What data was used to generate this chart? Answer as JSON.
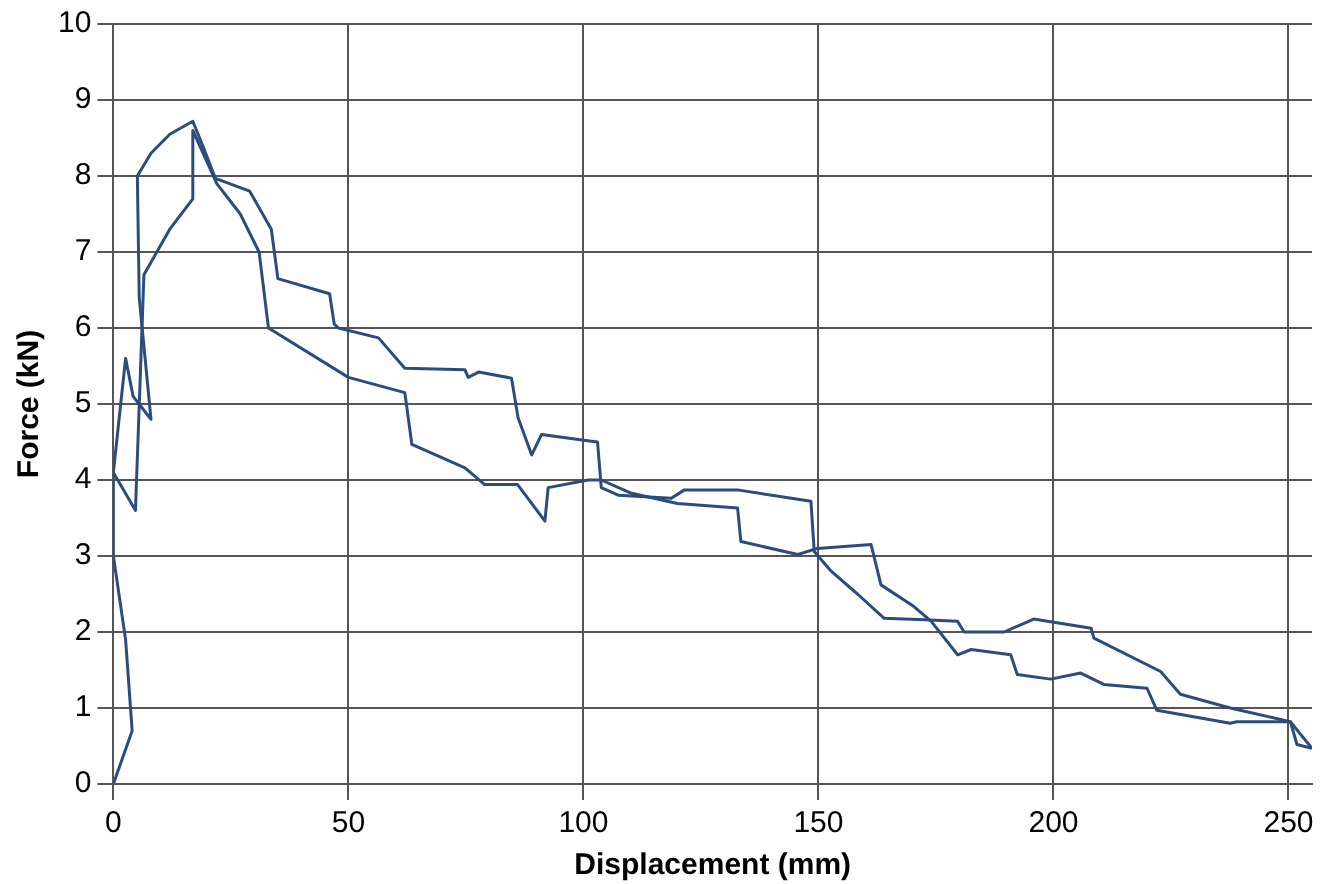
{
  "chart_data": {
    "type": "line",
    "xlabel": "Displacement (mm)",
    "ylabel": "Force (kN)",
    "xlim": [
      0,
      255
    ],
    "xticks": [
      0,
      50,
      100,
      150,
      200,
      250
    ],
    "ylim": [
      0,
      10
    ],
    "yticks": [
      0,
      1,
      2,
      3,
      4,
      5,
      6,
      7,
      8,
      9,
      10
    ],
    "grid": true,
    "legend": false,
    "marker": "none",
    "line_style": "solid",
    "series": [
      {
        "color": "#2a4d7c",
        "x": [
          0,
          4,
          2.6,
          0,
          0,
          2.6,
          4.2,
          8,
          5.5,
          5.1,
          8,
          12,
          16.9,
          19,
          21.7,
          29,
          33.6,
          35,
          46,
          47,
          47.9,
          56.4,
          62,
          74.8,
          75.5,
          77.7,
          84.7,
          86.1,
          89,
          91.1,
          101.7,
          103,
          103.8,
          107.4,
          118.7,
          121.5,
          132.8,
          148.4,
          149.1,
          152.7,
          158.3,
          164,
          172.5,
          179.6,
          181,
          189.5,
          195.8,
          208,
          208.6,
          222.8,
          227,
          237.6,
          250.4,
          255
        ],
        "values": [
          0,
          0.7,
          1.9,
          3,
          4.1,
          5.6,
          5.1,
          4.8,
          6.4,
          8,
          8.3,
          8.55,
          8.72,
          8.4,
          7.97,
          7.8,
          7.3,
          6.65,
          6.45,
          6.05,
          6,
          5.87,
          5.47,
          5.45,
          5.35,
          5.42,
          5.34,
          4.82,
          4.33,
          4.6,
          4.51,
          4.5,
          3.9,
          3.8,
          3.76,
          3.87,
          3.87,
          3.72,
          3.06,
          2.8,
          2.5,
          2.18,
          2.16,
          2.14,
          2,
          2,
          2.17,
          2.05,
          1.92,
          1.48,
          1.18,
          1,
          0.82,
          0.47
        ]
      },
      {
        "color": "#2a4d7c",
        "x": [
          0,
          4.7,
          6.5,
          12,
          16.9,
          16.9,
          22,
          27,
          31,
          33,
          50,
          62,
          63.5,
          74.8,
          79,
          86,
          91.8,
          92.5,
          101,
          103.8,
          110,
          120,
          132.8,
          133.5,
          145.6,
          149.8,
          161.2,
          163.3,
          170,
          174,
          179.6,
          182.5,
          190.9,
          192.3,
          199.4,
          205.8,
          210.7,
          219.9,
          222,
          237.6,
          239,
          250.4,
          251.8,
          255
        ],
        "values": [
          4.1,
          3.6,
          6.7,
          7.3,
          7.7,
          8.6,
          7.9,
          7.5,
          7,
          6,
          5.35,
          5.15,
          4.47,
          4.16,
          3.94,
          3.94,
          3.46,
          3.9,
          4,
          4,
          3.83,
          3.69,
          3.63,
          3.19,
          3.02,
          3.1,
          3.15,
          2.62,
          2.35,
          2.14,
          1.7,
          1.77,
          1.7,
          1.44,
          1.38,
          1.46,
          1.31,
          1.26,
          0.97,
          0.8,
          0.82,
          0.82,
          0.52,
          0.47
        ]
      }
    ]
  }
}
